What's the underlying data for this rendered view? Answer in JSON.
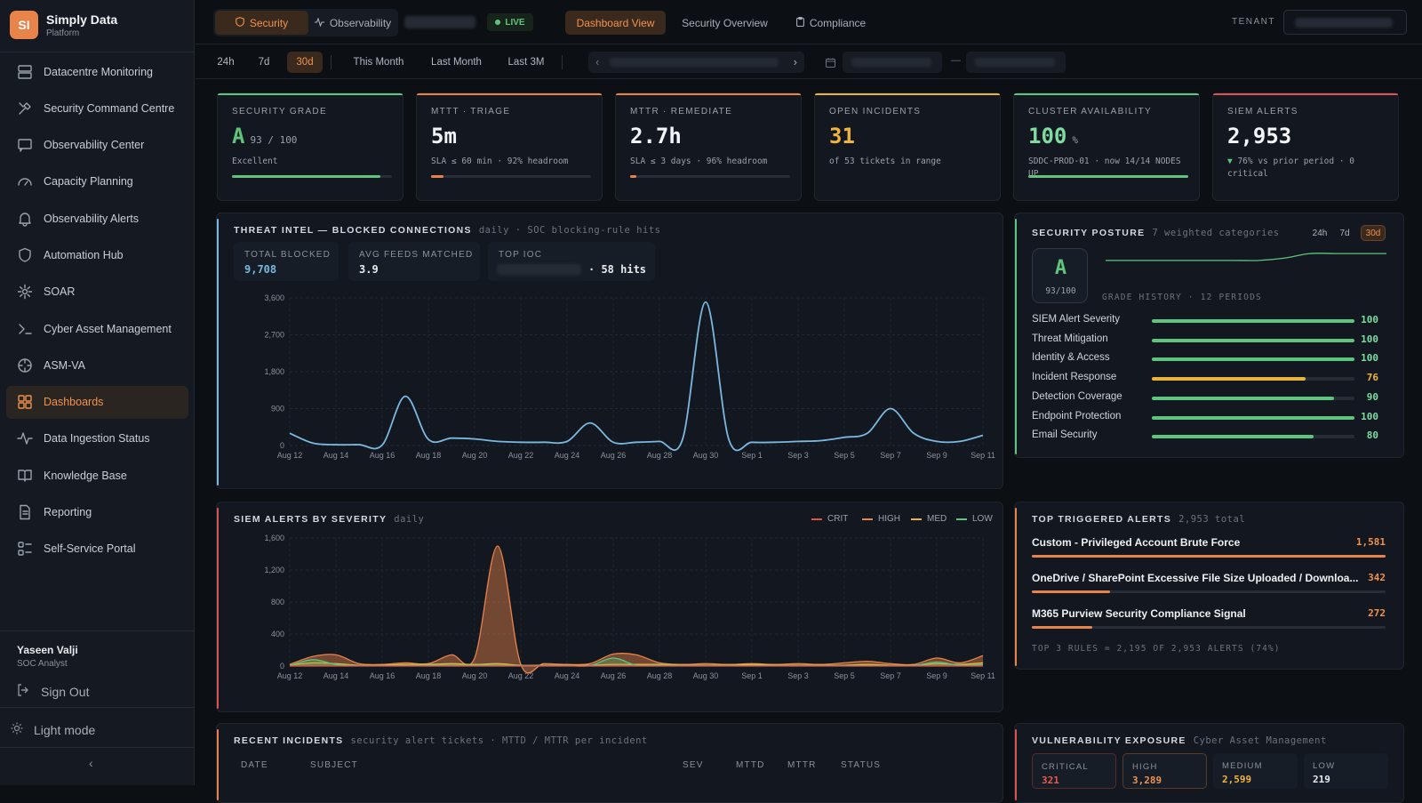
{
  "brand": {
    "initials": "SI",
    "name": "Simply Data",
    "sub": "Platform"
  },
  "nav": [
    {
      "label": "Datacentre Monitoring",
      "icon": "server-icon"
    },
    {
      "label": "Security Command Centre",
      "icon": "tools-icon"
    },
    {
      "label": "Observability Center",
      "icon": "chat-icon"
    },
    {
      "label": "Capacity Planning",
      "icon": "gauge-icon"
    },
    {
      "label": "Observability Alerts",
      "icon": "bell-icon"
    },
    {
      "label": "Automation Hub",
      "icon": "shield-icon"
    },
    {
      "label": "SOAR",
      "icon": "gear-icon"
    },
    {
      "label": "Cyber Asset Management",
      "icon": "terminal-icon"
    },
    {
      "label": "ASM-VA",
      "icon": "crosshair-icon"
    },
    {
      "label": "Dashboards",
      "icon": "grid-icon",
      "active": true
    },
    {
      "label": "Data Ingestion Status",
      "icon": "pulse-icon"
    },
    {
      "label": "Knowledge Base",
      "icon": "book-icon"
    },
    {
      "label": "Reporting",
      "icon": "document-icon"
    },
    {
      "label": "Self-Service Portal",
      "icon": "list-icon"
    }
  ],
  "user": {
    "name": "Yaseen Valji",
    "role": "SOC Analyst",
    "sign_out": "Sign Out",
    "light_mode": "Light mode"
  },
  "topbar": {
    "security": "Security",
    "observability": "Observability",
    "live": "LIVE",
    "dashboard_view": "Dashboard View",
    "security_overview": "Security Overview",
    "compliance": "Compliance",
    "tenant_label": "TENANT"
  },
  "ranges": {
    "r24h": "24h",
    "r7d": "7d",
    "r30d": "30d",
    "this_month": "This Month",
    "last_month": "Last Month",
    "last_3m": "Last 3M",
    "date_sep": "—"
  },
  "kpis": [
    {
      "label": "SECURITY GRADE",
      "value": "A",
      "value_suffix": "93 / 100",
      "sub": "Excellent",
      "progress": 0.93,
      "color": "#5fc47d",
      "value_color": "#5fc47d"
    },
    {
      "label": "MTTT · TRIAGE",
      "value": "5m",
      "value_suffix": "",
      "sub": "SLA ≤ 60 min · 92% headroom",
      "progress": 0.08,
      "color": "#e8834a",
      "value_color": "#f2f4f7"
    },
    {
      "label": "MTTR · REMEDIATE",
      "value": "2.7h",
      "value_suffix": "",
      "sub": "SLA ≤ 3 days · 96% headroom",
      "progress": 0.04,
      "color": "#e8834a",
      "value_color": "#f2f4f7"
    },
    {
      "label": "OPEN INCIDENTS",
      "value": "31",
      "value_suffix": "",
      "sub": "of 53 tickets in range",
      "progress": 0,
      "color": "#e8b43c",
      "value_color": "#f0b43a"
    },
    {
      "label": "CLUSTER AVAILABILITY",
      "value": "100",
      "value_suffix": "%",
      "sub": "SDDC-PROD-01 · now 14/14 NODES UP",
      "progress": 1.0,
      "color": "#5fc47d",
      "value_color": "#7fdca0"
    },
    {
      "label": "SIEM ALERTS",
      "value": "2,953",
      "value_suffix": "",
      "sub": "76% vs prior period · 0 critical",
      "sub_prefix": "▼ ",
      "progress": 0,
      "color": "#d9534f",
      "value_color": "#f2f4f7"
    }
  ],
  "threat": {
    "title": "THREAT INTEL — BLOCKED CONNECTIONS",
    "sub": "daily · SOC blocking-rule hits",
    "total_blocked_label": "TOTAL BLOCKED",
    "total_blocked": "9,708",
    "avg_feeds_label": "AVG FEEDS MATCHED",
    "avg_feeds": "3.9",
    "top_ioc_label": "TOP IOC",
    "top_ioc_hits": "· 58 hits"
  },
  "siem": {
    "title": "SIEM ALERTS BY SEVERITY",
    "sub": "daily",
    "legend": [
      "CRIT",
      "HIGH",
      "MED",
      "LOW"
    ]
  },
  "posture": {
    "title": "SECURITY POSTURE",
    "sub": "7 weighted categories",
    "grade": "A",
    "score": "93/100",
    "history_label": "GRADE HISTORY · 12 PERIODS",
    "ranges": [
      "24h",
      "7d",
      "30d"
    ],
    "rows": [
      {
        "name": "SIEM Alert Severity",
        "score": "100",
        "pct": 1.0,
        "color": "#5fc47d"
      },
      {
        "name": "Threat Mitigation",
        "score": "100",
        "pct": 1.0,
        "color": "#5fc47d"
      },
      {
        "name": "Identity & Access",
        "score": "100",
        "pct": 1.0,
        "color": "#5fc47d"
      },
      {
        "name": "Incident Response",
        "score": "76",
        "pct": 0.76,
        "color": "#e8b43c"
      },
      {
        "name": "Detection Coverage",
        "score": "90",
        "pct": 0.9,
        "color": "#5fc47d"
      },
      {
        "name": "Endpoint Protection",
        "score": "100",
        "pct": 1.0,
        "color": "#5fc47d"
      },
      {
        "name": "Email Security",
        "score": "80",
        "pct": 0.8,
        "color": "#5fc47d"
      }
    ]
  },
  "top_alerts": {
    "title": "TOP TRIGGERED ALERTS",
    "sub": "2,953 total",
    "rows": [
      {
        "name": "Custom - Privileged Account Brute Force",
        "count": "1,581",
        "pct": 1.0
      },
      {
        "name": "OneDrive / SharePoint Excessive File Size Uploaded / Downloa...",
        "count": "342",
        "pct": 0.22
      },
      {
        "name": "M365 Purview Security Compliance Signal",
        "count": "272",
        "pct": 0.17
      }
    ],
    "footer": "TOP 3 RULES = 2,195 OF 2,953 ALERTS (74%)"
  },
  "incidents": {
    "title": "RECENT INCIDENTS",
    "sub": "security alert tickets · MTTD / MTTR per incident",
    "columns": [
      "DATE",
      "SUBJECT",
      "SEV",
      "MTTD",
      "MTTR",
      "STATUS"
    ]
  },
  "vuln": {
    "title": "VULNERABILITY EXPOSURE",
    "sub": "Cyber Asset Management",
    "items": [
      {
        "label": "CRITICAL",
        "value": "321",
        "color": "#e85a4f"
      },
      {
        "label": "HIGH",
        "value": "3,289",
        "color": "#f0924f"
      },
      {
        "label": "MEDIUM",
        "value": "2,599",
        "color": "#f0b43a"
      },
      {
        "label": "LOW",
        "value": "219",
        "color": "#e8eaee"
      }
    ]
  },
  "colors": {
    "accent": "#e8834a",
    "good": "#5fc47d",
    "warn": "#e8b43c",
    "bad": "#d9534f",
    "line": "#7ab8e0"
  },
  "chart_data": [
    {
      "type": "line",
      "title": "THREAT INTEL — BLOCKED CONNECTIONS",
      "x": [
        "Aug 12",
        "Aug 13",
        "Aug 14",
        "Aug 15",
        "Aug 16",
        "Aug 17",
        "Aug 18",
        "Aug 19",
        "Aug 20",
        "Aug 21",
        "Aug 22",
        "Aug 23",
        "Aug 24",
        "Aug 25",
        "Aug 26",
        "Aug 27",
        "Aug 28",
        "Aug 29",
        "Aug 30",
        "Aug 31",
        "Sep 1",
        "Sep 2",
        "Sep 3",
        "Sep 4",
        "Sep 5",
        "Sep 6",
        "Sep 7",
        "Sep 8",
        "Sep 9",
        "Sep 10",
        "Sep 11"
      ],
      "xticks": [
        "Aug 12",
        "Aug 14",
        "Aug 16",
        "Aug 18",
        "Aug 20",
        "Aug 22",
        "Aug 24",
        "Aug 26",
        "Aug 28",
        "Aug 30",
        "Sep 1",
        "Sep 3",
        "Sep 5",
        "Sep 7",
        "Sep 9",
        "Sep 11"
      ],
      "series": [
        {
          "values": [
            300,
            60,
            20,
            20,
            10,
            1200,
            150,
            180,
            160,
            100,
            80,
            80,
            100,
            550,
            80,
            80,
            100,
            150,
            3500,
            150,
            80,
            80,
            100,
            120,
            200,
            300,
            900,
            300,
            100,
            100,
            250
          ]
        }
      ],
      "ylim": [
        0,
        3600
      ],
      "yticks": [
        0,
        900,
        1800,
        2700,
        3600
      ]
    },
    {
      "type": "area",
      "title": "SIEM ALERTS BY SEVERITY",
      "x": [
        "Aug 12",
        "Aug 13",
        "Aug 14",
        "Aug 15",
        "Aug 16",
        "Aug 17",
        "Aug 18",
        "Aug 19",
        "Aug 20",
        "Aug 21",
        "Aug 22",
        "Aug 23",
        "Aug 24",
        "Aug 25",
        "Aug 26",
        "Aug 27",
        "Aug 28",
        "Aug 29",
        "Aug 30",
        "Aug 31",
        "Sep 1",
        "Sep 2",
        "Sep 3",
        "Sep 4",
        "Sep 5",
        "Sep 6",
        "Sep 7",
        "Sep 8",
        "Sep 9",
        "Sep 10",
        "Sep 11"
      ],
      "xticks": [
        "Aug 12",
        "Aug 14",
        "Aug 16",
        "Aug 18",
        "Aug 20",
        "Aug 22",
        "Aug 24",
        "Aug 26",
        "Aug 28",
        "Aug 30",
        "Sep 1",
        "Sep 3",
        "Sep 5",
        "Sep 7",
        "Sep 9",
        "Sep 11"
      ],
      "series": [
        {
          "name": "CRIT",
          "color": "#d9534f",
          "values": [
            0,
            0,
            0,
            0,
            0,
            0,
            0,
            0,
            0,
            0,
            0,
            0,
            0,
            0,
            0,
            0,
            0,
            0,
            0,
            0,
            0,
            0,
            0,
            0,
            0,
            0,
            0,
            0,
            0,
            0,
            0
          ]
        },
        {
          "name": "HIGH",
          "color": "#e8834a",
          "values": [
            20,
            120,
            140,
            30,
            20,
            40,
            30,
            140,
            100,
            1500,
            20,
            30,
            20,
            30,
            150,
            140,
            40,
            20,
            30,
            20,
            30,
            20,
            30,
            20,
            40,
            60,
            30,
            20,
            100,
            40,
            130
          ]
        },
        {
          "name": "MED",
          "color": "#e8b43c",
          "values": [
            10,
            40,
            30,
            10,
            10,
            20,
            20,
            30,
            20,
            30,
            10,
            10,
            10,
            10,
            20,
            20,
            20,
            10,
            10,
            10,
            20,
            10,
            10,
            10,
            10,
            20,
            10,
            10,
            30,
            20,
            40
          ]
        },
        {
          "name": "LOW",
          "color": "#5fc47d",
          "values": [
            5,
            80,
            20,
            5,
            5,
            5,
            10,
            10,
            10,
            10,
            5,
            5,
            5,
            5,
            100,
            10,
            10,
            5,
            5,
            5,
            5,
            5,
            5,
            5,
            5,
            5,
            5,
            5,
            50,
            10,
            20
          ]
        }
      ],
      "ylim": [
        0,
        1600
      ],
      "yticks": [
        0,
        400,
        800,
        1200,
        1600
      ]
    },
    {
      "type": "line",
      "title": "GRADE HISTORY · 12 PERIODS",
      "series": [
        {
          "values": [
            90,
            90,
            90,
            90,
            90,
            90,
            90,
            91,
            93,
            93,
            93,
            93
          ]
        }
      ]
    }
  ]
}
